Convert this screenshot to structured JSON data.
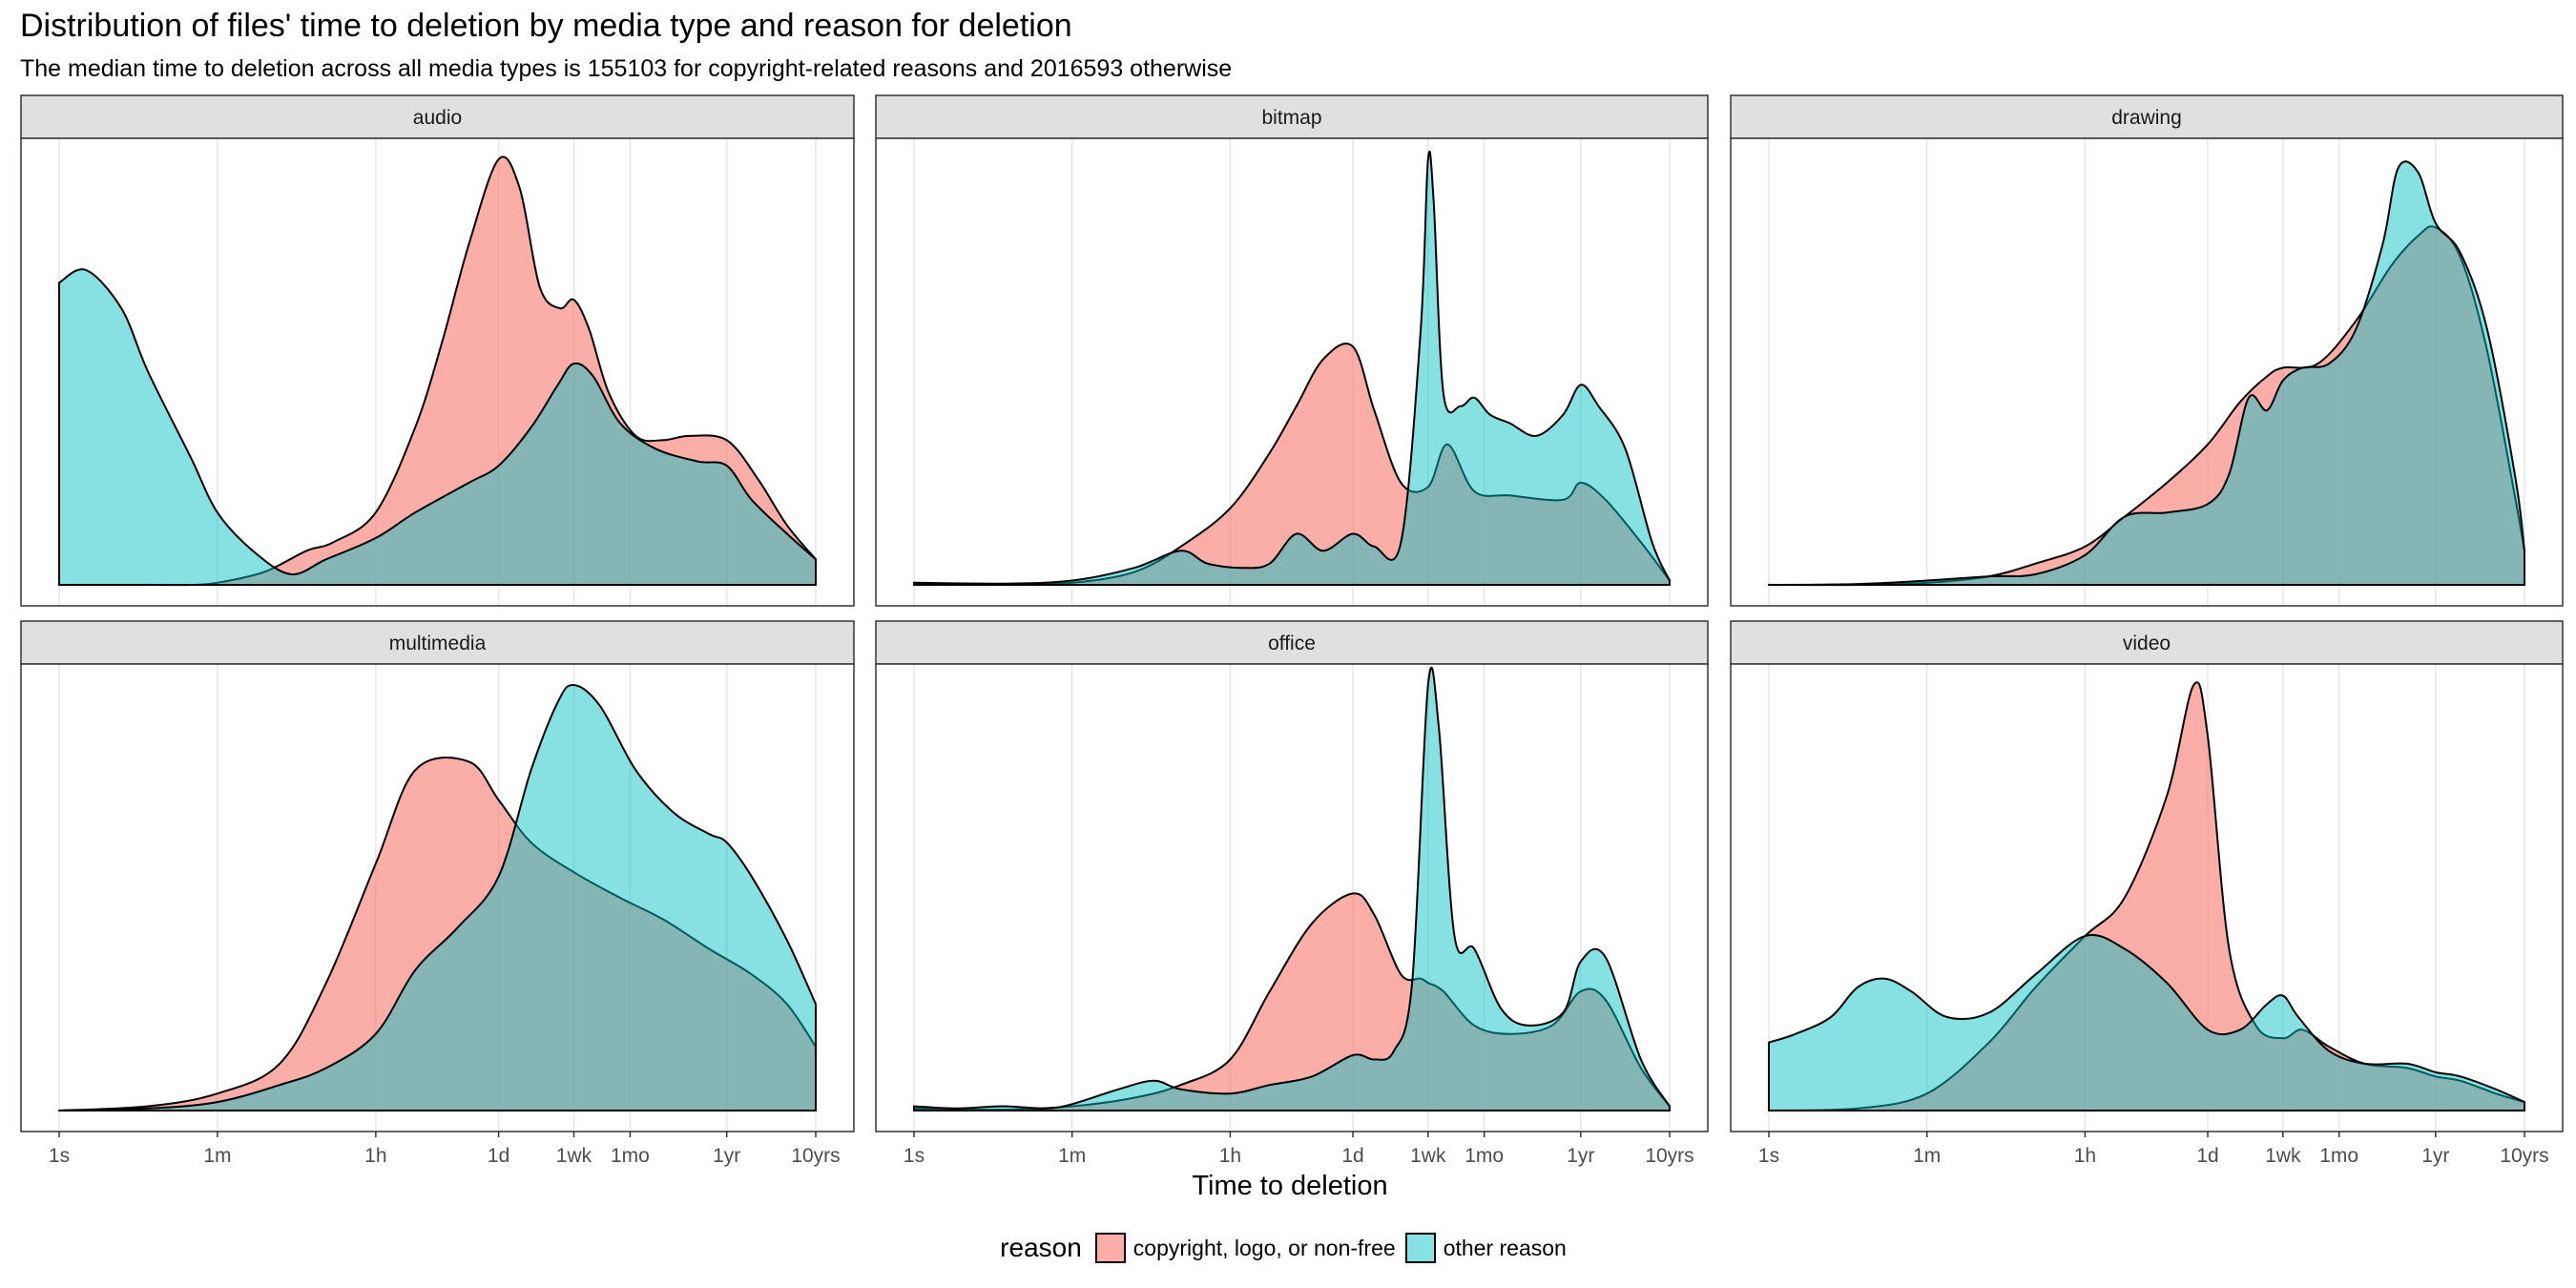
{
  "chart_data": {
    "type": "area",
    "title": "Distribution of files' time to deletion by media type and reason for deletion",
    "subtitle": "The median time to deletion across all media types is 155103 for copyright-related reasons and 2016593 otherwise",
    "xlabel": "Time to deletion",
    "x_scale": "log10 (seconds)",
    "xlim": [
      1,
      315360000
    ],
    "x_ticks": [
      {
        "label": "1s",
        "value": 1
      },
      {
        "label": "1m",
        "value": 60
      },
      {
        "label": "1h",
        "value": 3600
      },
      {
        "label": "1d",
        "value": 86400
      },
      {
        "label": "1wk",
        "value": 604800
      },
      {
        "label": "1mo",
        "value": 2592000
      },
      {
        "label": "1yr",
        "value": 31536000
      },
      {
        "label": "10yrs",
        "value": 315360000
      }
    ],
    "legend": {
      "title": "reason",
      "position": "bottom",
      "entries": [
        {
          "label": "copyright, logo, or non-free",
          "color": "#F8766D"
        },
        {
          "label": "other reason",
          "color": "#00BFC4"
        }
      ]
    },
    "grid": true,
    "colors": {
      "copyright": "#F8766D",
      "other": "#00BFC4",
      "panel_strip": "#e0e0e0",
      "grid": "#e6e6e6"
    },
    "panels": [
      {
        "name": "audio",
        "ylim": [
          0,
          1
        ],
        "series": [
          {
            "name": "copyright, logo, or non-free",
            "x": [
              1,
              3,
              10,
              30,
              60,
              200,
              600,
              1200,
              3600,
              10000,
              20000,
              40000,
              86400,
              150000,
              250000,
              420000,
              604800,
              900000,
              1500000,
              3000000,
              6000000,
              12000000,
              31536000,
              70000000,
              150000000,
              315360000
            ],
            "y": [
              0,
              0,
              0,
              0,
              0.005,
              0.03,
              0.08,
              0.1,
              0.17,
              0.37,
              0.57,
              0.8,
              1.0,
              0.93,
              0.7,
              0.65,
              0.67,
              0.6,
              0.45,
              0.35,
              0.34,
              0.35,
              0.34,
              0.25,
              0.14,
              0.06
            ]
          },
          {
            "name": "other reason",
            "x": [
              1,
              2,
              5,
              10,
              30,
              60,
              150,
              400,
              1000,
              3600,
              10000,
              40000,
              86400,
              200000,
              400000,
              604800,
              1000000,
              2000000,
              5000000,
              15000000,
              31536000,
              60000000,
              150000000,
              315360000
            ],
            "y": [
              0.71,
              0.74,
              0.65,
              0.5,
              0.3,
              0.17,
              0.08,
              0.025,
              0.06,
              0.11,
              0.17,
              0.24,
              0.28,
              0.37,
              0.47,
              0.52,
              0.49,
              0.38,
              0.32,
              0.29,
              0.28,
              0.2,
              0.12,
              0.06
            ]
          }
        ]
      },
      {
        "name": "bitmap",
        "ylim": [
          0,
          1
        ],
        "series": [
          {
            "name": "copyright, logo, or non-free",
            "x": [
              1,
              2,
              5,
              10,
              60,
              300,
              1000,
              3600,
              10000,
              20000,
              40000,
              86400,
              150000,
              300000,
              604800,
              1000000,
              2000000,
              5000000,
              20000000,
              31536000,
              60000000,
              150000000,
              315360000
            ],
            "y": [
              0.005,
              0.002,
              0.003,
              0.002,
              0.005,
              0.03,
              0.09,
              0.18,
              0.31,
              0.42,
              0.53,
              0.56,
              0.41,
              0.24,
              0.23,
              0.33,
              0.22,
              0.21,
              0.2,
              0.24,
              0.2,
              0.1,
              0.01
            ]
          },
          {
            "name": "other reason",
            "x": [
              1,
              10,
              60,
              300,
              1000,
              2000,
              5000,
              10000,
              20000,
              40000,
              86400,
              150000,
              300000,
              500000,
              604800,
              700000,
              900000,
              1400000,
              2000000,
              3000000,
              5000000,
              10000000,
              20000000,
              31536000,
              50000000,
              100000000,
              200000000,
              315360000
            ],
            "y": [
              0.005,
              0.003,
              0.01,
              0.04,
              0.08,
              0.05,
              0.04,
              0.05,
              0.12,
              0.08,
              0.12,
              0.09,
              0.1,
              0.6,
              1.0,
              0.9,
              0.45,
              0.42,
              0.44,
              0.4,
              0.38,
              0.35,
              0.4,
              0.47,
              0.42,
              0.32,
              0.1,
              0.01
            ]
          }
        ]
      },
      {
        "name": "drawing",
        "ylim": [
          0,
          1
        ],
        "series": [
          {
            "name": "copyright, logo, or non-free",
            "x": [
              1,
              10,
              60,
              300,
              1000,
              3600,
              10000,
              30000,
              86400,
              200000,
              400000,
              604800,
              1500000,
              4000000,
              10000000,
              20000000,
              31536000,
              60000000,
              120000000,
              250000000,
              315360000
            ],
            "y": [
              0,
              0,
              0.005,
              0.02,
              0.05,
              0.09,
              0.16,
              0.24,
              0.33,
              0.43,
              0.49,
              0.51,
              0.52,
              0.62,
              0.75,
              0.82,
              0.84,
              0.77,
              0.55,
              0.2,
              0.08
            ]
          },
          {
            "name": "other reason",
            "x": [
              1,
              10,
              60,
              300,
              1000,
              3600,
              10000,
              30000,
              86400,
              150000,
              250000,
              400000,
              604800,
              1000000,
              2000000,
              4000000,
              8000000,
              12000000,
              20000000,
              31536000,
              60000000,
              120000000,
              250000000,
              315360000
            ],
            "y": [
              0,
              0.002,
              0.01,
              0.02,
              0.025,
              0.07,
              0.16,
              0.17,
              0.19,
              0.26,
              0.44,
              0.41,
              0.48,
              0.51,
              0.52,
              0.6,
              0.8,
              0.98,
              0.97,
              0.85,
              0.78,
              0.6,
              0.25,
              0.08
            ]
          }
        ]
      },
      {
        "name": "multimedia",
        "ylim": [
          0,
          1
        ],
        "series": [
          {
            "name": "copyright, logo, or non-free",
            "x": [
              1,
              10,
              60,
              300,
              1000,
              3600,
              10000,
              40000,
              86400,
              200000,
              604800,
              2000000,
              6000000,
              20000000,
              60000000,
              150000000,
              315360000
            ],
            "y": [
              0,
              0.01,
              0.04,
              0.11,
              0.3,
              0.58,
              0.8,
              0.82,
              0.73,
              0.63,
              0.56,
              0.5,
              0.45,
              0.38,
              0.32,
              0.25,
              0.15
            ]
          },
          {
            "name": "other reason",
            "x": [
              1,
              10,
              60,
              300,
              1000,
              3600,
              10000,
              30000,
              86400,
              200000,
              400000,
              604800,
              1200000,
              3000000,
              8000000,
              20000000,
              31536000,
              60000000,
              150000000,
              315360000
            ],
            "y": [
              0,
              0.005,
              0.02,
              0.06,
              0.1,
              0.18,
              0.33,
              0.43,
              0.55,
              0.8,
              0.96,
              1.0,
              0.95,
              0.8,
              0.7,
              0.65,
              0.63,
              0.55,
              0.4,
              0.25
            ]
          }
        ]
      },
      {
        "name": "office",
        "ylim": [
          0,
          1
        ],
        "series": [
          {
            "name": "copyright, logo, or non-free",
            "x": [
              1,
              10,
              60,
              300,
              1000,
              3600,
              10000,
              30000,
              86400,
              150000,
              300000,
              500000,
              604800,
              900000,
              2000000,
              5000000,
              15000000,
              31536000,
              60000000,
              150000000,
              315360000
            ],
            "y": [
              0.005,
              0.002,
              0.01,
              0.03,
              0.06,
              0.12,
              0.28,
              0.44,
              0.51,
              0.46,
              0.32,
              0.31,
              0.3,
              0.28,
              0.2,
              0.18,
              0.2,
              0.28,
              0.26,
              0.1,
              0.01
            ]
          },
          {
            "name": "other reason",
            "x": [
              1,
              3,
              10,
              30,
              60,
              200,
              500,
              1000,
              3600,
              10000,
              30000,
              86400,
              150000,
              250000,
              400000,
              604800,
              800000,
              1200000,
              2000000,
              4000000,
              8000000,
              20000000,
              31536000,
              60000000,
              150000000,
              315360000
            ],
            "y": [
              0.01,
              0.005,
              0.01,
              0.005,
              0.015,
              0.05,
              0.07,
              0.05,
              0.04,
              0.06,
              0.08,
              0.13,
              0.12,
              0.14,
              0.3,
              1.0,
              0.9,
              0.41,
              0.38,
              0.24,
              0.2,
              0.23,
              0.35,
              0.36,
              0.12,
              0.01
            ]
          }
        ]
      },
      {
        "name": "video",
        "ylim": [
          0,
          1
        ],
        "series": [
          {
            "name": "copyright, logo, or non-free",
            "x": [
              1,
              10,
              60,
              300,
              1000,
              3600,
              10000,
              30000,
              60000,
              86400,
              150000,
              300000,
              604800,
              1000000,
              2000000,
              5000000,
              15000000,
              31536000,
              60000000,
              150000000,
              315360000
            ],
            "y": [
              0,
              0.005,
              0.04,
              0.16,
              0.29,
              0.41,
              0.5,
              0.74,
              1.0,
              0.88,
              0.38,
              0.2,
              0.17,
              0.19,
              0.15,
              0.11,
              0.1,
              0.08,
              0.07,
              0.04,
              0.02
            ]
          },
          {
            "name": "other reason",
            "x": [
              1,
              2,
              5,
              10,
              20,
              40,
              100,
              300,
              1000,
              3600,
              10000,
              30000,
              86400,
              200000,
              400000,
              604800,
              900000,
              2000000,
              5000000,
              15000000,
              31536000,
              60000000,
              150000000,
              315360000
            ],
            "y": [
              0.16,
              0.18,
              0.22,
              0.29,
              0.31,
              0.28,
              0.22,
              0.23,
              0.32,
              0.41,
              0.38,
              0.3,
              0.19,
              0.19,
              0.25,
              0.27,
              0.22,
              0.14,
              0.11,
              0.11,
              0.09,
              0.08,
              0.05,
              0.02
            ]
          }
        ]
      }
    ]
  }
}
